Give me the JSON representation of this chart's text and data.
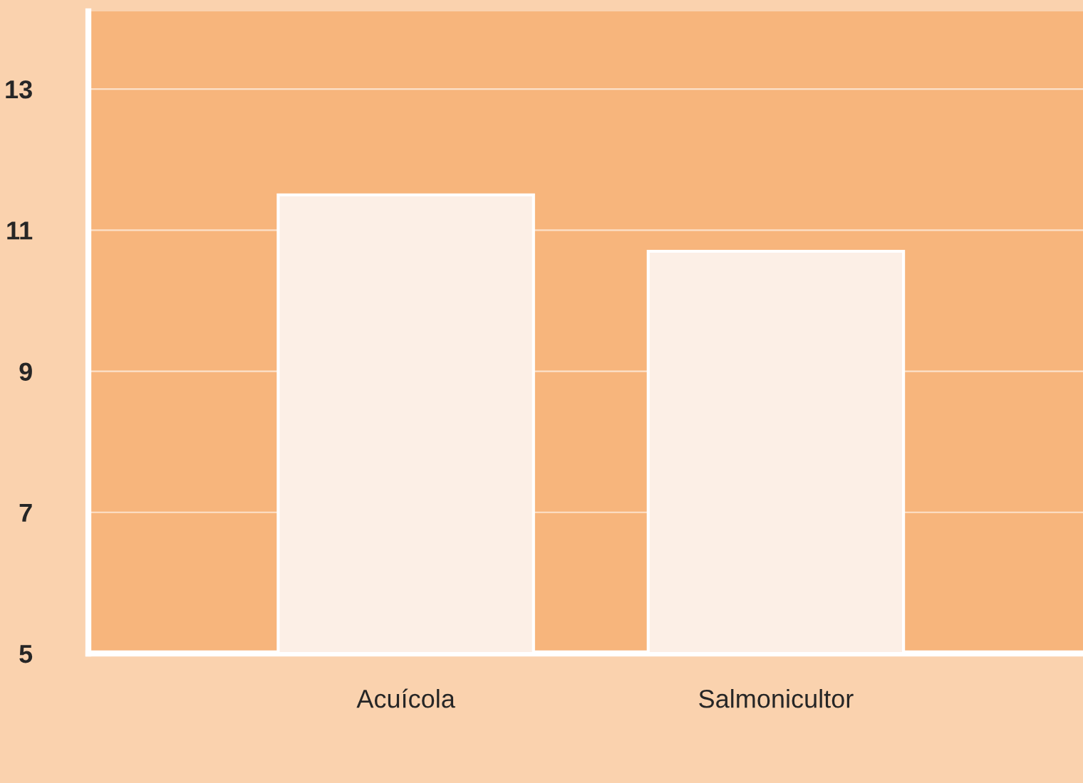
{
  "chart_data": {
    "type": "bar",
    "categories": [
      "Acuícola",
      "Salmonicultor"
    ],
    "values": [
      11.5,
      10.7
    ],
    "color": "#fcefe6",
    "ylim": [
      5,
      14.1
    ],
    "yticks": [
      5,
      7,
      9,
      11,
      13
    ],
    "grid": "y"
  }
}
